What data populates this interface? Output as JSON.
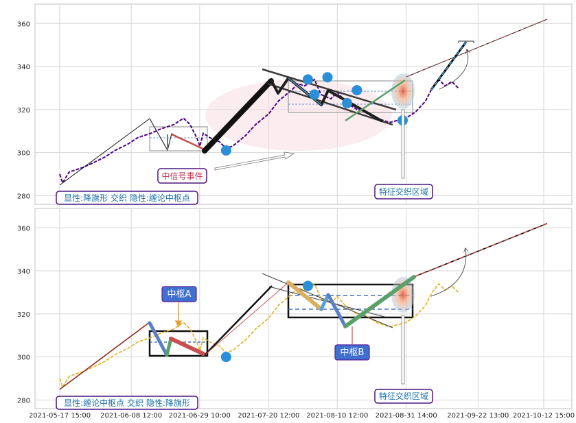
{
  "chart_data": [
    {
      "type": "line",
      "panel": "top",
      "title": "",
      "xlabel": "",
      "ylabel": "",
      "ylim": [
        276,
        369
      ],
      "yticks": [
        280,
        300,
        320,
        340,
        360
      ],
      "grid": true,
      "colors": {
        "price": "#4b0082",
        "trend": "#000000",
        "ellipse": "#f5c6cf",
        "node": "#2a8fd6",
        "box": "#999999",
        "dash": "#4472c4"
      },
      "series": [
        {
          "values_format": "[date, price]",
          "values": [
            [
              "2021-05-17 15:00",
              290
            ],
            [
              "2021-05-18 12:00",
              286
            ],
            [
              "2021-05-20 12:00",
              291
            ],
            [
              "2021-05-24 12:00",
              293
            ],
            [
              "2021-05-27 12:00",
              295
            ],
            [
              "2021-05-31 12:00",
              298
            ],
            [
              "2021-06-03 12:00",
              301
            ],
            [
              "2021-06-07 12:00",
              304
            ],
            [
              "2021-06-10 12:00",
              307
            ],
            [
              "2021-06-14 12:00",
              309
            ],
            [
              "2021-06-17 12:00",
              311
            ],
            [
              "2021-06-21 12:00",
              313
            ],
            [
              "2021-06-24 12:00",
              316
            ],
            [
              "2021-06-26 12:00",
              313
            ],
            [
              "2021-06-28 12:00",
              307
            ],
            [
              "2021-06-29 12:00",
              303
            ],
            [
              "2021-06-30 12:00",
              309
            ],
            [
              "2021-07-02 12:00",
              307
            ],
            [
              "2021-07-05 12:00",
              305
            ],
            [
              "2021-07-07 12:00",
              302
            ],
            [
              "2021-07-09 12:00",
              303
            ],
            [
              "2021-07-13 12:00",
              308
            ],
            [
              "2021-07-16 12:00",
              313
            ],
            [
              "2021-07-20 12:00",
              318
            ],
            [
              "2021-07-23 12:00",
              324
            ],
            [
              "2021-07-27 12:00",
              329
            ],
            [
              "2021-07-29 12:00",
              332
            ],
            [
              "2021-07-31 12:00",
              331
            ],
            [
              "2021-08-03 12:00",
              334
            ],
            [
              "2021-08-05 12:00",
              327
            ],
            [
              "2021-08-08 12:00",
              325
            ],
            [
              "2021-08-10 12:00",
              328
            ],
            [
              "2021-08-13 12:00",
              323
            ],
            [
              "2021-08-16 12:00",
              320
            ],
            [
              "2021-08-19 12:00",
              319
            ],
            [
              "2021-08-22 12:00",
              316
            ],
            [
              "2021-08-26 12:00",
              314
            ],
            [
              "2021-08-31 12:00",
              316
            ],
            [
              "2021-09-03 12:00",
              319
            ],
            [
              "2021-09-06 12:00",
              324
            ],
            [
              "2021-09-08 12:00",
              330
            ],
            [
              "2021-09-10 12:00",
              334
            ],
            [
              "2021-09-12 12:00",
              331
            ],
            [
              "2021-09-14 12:00",
              333
            ],
            [
              "2021-09-16 12:00",
              330
            ]
          ]
        }
      ],
      "overlays": {
        "nodes": [
          [
            "2021-07-07 12:00",
            301
          ],
          [
            "2021-08-01 12:00",
            334
          ],
          [
            "2021-08-03 12:00",
            327
          ],
          [
            "2021-08-07 12:00",
            335
          ],
          [
            "2021-08-13 12:00",
            323
          ],
          [
            "2021-08-16 12:00",
            329
          ],
          [
            "2021-08-30 12:00",
            315
          ]
        ],
        "extension": [
          [
            "2021-09-12 12:00",
            333
          ],
          [
            "2021-10-20 12:00",
            362
          ]
        ],
        "projection": [
          [
            "2021-09-14 12:00",
            328
          ],
          [
            "2021-09-24 12:00",
            352
          ]
        ]
      },
      "annotations": {
        "event": "中信号事件",
        "region": "特征交织区域",
        "caption": "显性:降旗形 交织 隐性:缠论中枢点"
      }
    },
    {
      "type": "line",
      "panel": "bottom",
      "title": "",
      "xlabel": "",
      "ylabel": "",
      "ylim": [
        276,
        369
      ],
      "yticks": [
        280,
        300,
        320,
        340,
        360
      ],
      "grid": true,
      "colors": {
        "price": "#e3b020",
        "trend": "#000000",
        "node": "#2a8fd6",
        "box": "#111111",
        "dash": "#4472c4"
      },
      "series": [
        {
          "values_format": "[date, price]",
          "values": [
            [
              "2021-05-17 15:00",
              290
            ],
            [
              "2021-05-18 12:00",
              286
            ],
            [
              "2021-05-20 12:00",
              291
            ],
            [
              "2021-05-24 12:00",
              293
            ],
            [
              "2021-05-27 12:00",
              295
            ],
            [
              "2021-05-31 12:00",
              298
            ],
            [
              "2021-06-03 12:00",
              301
            ],
            [
              "2021-06-07 12:00",
              304
            ],
            [
              "2021-06-10 12:00",
              307
            ],
            [
              "2021-06-14 12:00",
              309
            ],
            [
              "2021-06-17 12:00",
              311
            ],
            [
              "2021-06-21 12:00",
              313
            ],
            [
              "2021-06-24 12:00",
              316
            ],
            [
              "2021-06-26 12:00",
              313
            ],
            [
              "2021-06-28 12:00",
              307
            ],
            [
              "2021-06-29 12:00",
              303
            ],
            [
              "2021-06-30 12:00",
              309
            ],
            [
              "2021-07-02 12:00",
              307
            ],
            [
              "2021-07-05 12:00",
              305
            ],
            [
              "2021-07-07 12:00",
              302
            ],
            [
              "2021-07-09 12:00",
              303
            ],
            [
              "2021-07-13 12:00",
              308
            ],
            [
              "2021-07-16 12:00",
              313
            ],
            [
              "2021-07-20 12:00",
              318
            ],
            [
              "2021-07-23 12:00",
              324
            ],
            [
              "2021-07-27 12:00",
              329
            ],
            [
              "2021-07-29 12:00",
              332
            ],
            [
              "2021-07-31 12:00",
              331
            ],
            [
              "2021-08-03 12:00",
              334
            ],
            [
              "2021-08-05 12:00",
              327
            ],
            [
              "2021-08-08 12:00",
              325
            ],
            [
              "2021-08-10 12:00",
              328
            ],
            [
              "2021-08-13 12:00",
              323
            ],
            [
              "2021-08-16 12:00",
              320
            ],
            [
              "2021-08-19 12:00",
              319
            ],
            [
              "2021-08-22 12:00",
              316
            ],
            [
              "2021-08-26 12:00",
              314
            ],
            [
              "2021-08-31 12:00",
              316
            ],
            [
              "2021-09-03 12:00",
              319
            ],
            [
              "2021-09-06 12:00",
              324
            ],
            [
              "2021-09-08 12:00",
              330
            ],
            [
              "2021-09-10 12:00",
              334
            ],
            [
              "2021-09-12 12:00",
              331
            ],
            [
              "2021-09-14 12:00",
              333
            ],
            [
              "2021-09-16 12:00",
              330
            ]
          ]
        }
      ],
      "overlays": {
        "nodes": [
          [
            "2021-07-07 12:00",
            300
          ],
          [
            "2021-08-01 12:00",
            333
          ]
        ],
        "extension": [
          [
            "2021-09-12 12:00",
            337
          ],
          [
            "2021-10-20 12:00",
            362
          ]
        ]
      },
      "annotations": {
        "pivot_a": "中枢A",
        "pivot_b": "中枢B",
        "region": "特征交织区域",
        "caption": "显性:缠论中枢点 交织 隐性:降旗形"
      }
    }
  ],
  "x_axis": {
    "ticks": [
      "2021-05-17 15:00",
      "2021-06-08 12:00",
      "2021-06-29 10:00",
      "2021-07-20 12:00",
      "2021-08-10 12:00",
      "2021-08-31 14:00",
      "2021-09-22 13:00",
      "2021-10-12 15:00"
    ],
    "range": [
      "2021-05-12 00:00",
      "2021-10-24 00:00"
    ]
  }
}
